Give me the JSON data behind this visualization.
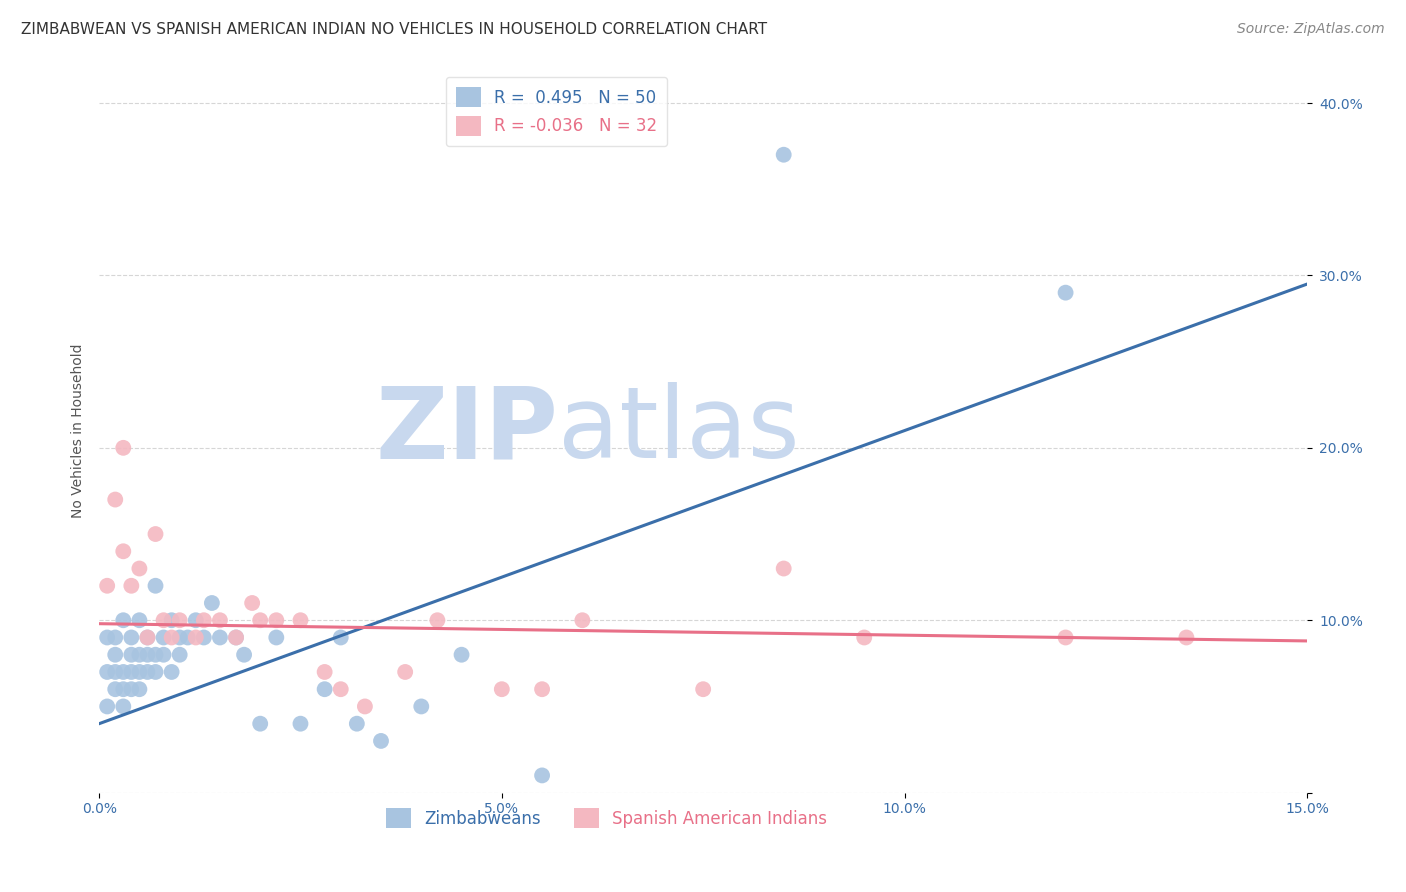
{
  "title": "ZIMBABWEAN VS SPANISH AMERICAN INDIAN NO VEHICLES IN HOUSEHOLD CORRELATION CHART",
  "source": "Source: ZipAtlas.com",
  "xlabel_zimbabwean": "Zimbabweans",
  "xlabel_spanish": "Spanish American Indians",
  "ylabel": "No Vehicles in Household",
  "R_zimbabwean": 0.495,
  "N_zimbabwean": 50,
  "R_spanish": -0.036,
  "N_spanish": 32,
  "xlim": [
    0.0,
    0.15
  ],
  "ylim": [
    0.0,
    0.42
  ],
  "xticks": [
    0.0,
    0.05,
    0.1,
    0.15
  ],
  "yticks": [
    0.0,
    0.1,
    0.2,
    0.3,
    0.4
  ],
  "xtick_labels": [
    "0.0%",
    "5.0%",
    "10.0%",
    "15.0%"
  ],
  "ytick_labels": [
    "",
    "10.0%",
    "20.0%",
    "30.0%",
    "40.0%"
  ],
  "color_zimbabwean": "#a8c4e0",
  "color_spanish": "#f4b8c1",
  "line_color_zimbabwean": "#3b6faa",
  "line_color_spanish": "#e87088",
  "background_color": "#ffffff",
  "watermark_zip": "ZIP",
  "watermark_atlas": "atlas",
  "watermark_color_zip": "#c8d8ee",
  "watermark_color_atlas": "#c8d8ee",
  "zimbabwean_x": [
    0.001,
    0.001,
    0.001,
    0.002,
    0.002,
    0.002,
    0.002,
    0.003,
    0.003,
    0.003,
    0.003,
    0.004,
    0.004,
    0.004,
    0.004,
    0.005,
    0.005,
    0.005,
    0.005,
    0.006,
    0.006,
    0.006,
    0.007,
    0.007,
    0.007,
    0.008,
    0.008,
    0.009,
    0.009,
    0.01,
    0.01,
    0.011,
    0.012,
    0.013,
    0.014,
    0.015,
    0.017,
    0.018,
    0.02,
    0.022,
    0.025,
    0.028,
    0.03,
    0.032,
    0.035,
    0.04,
    0.045,
    0.055,
    0.085,
    0.12
  ],
  "zimbabwean_y": [
    0.05,
    0.07,
    0.09,
    0.06,
    0.07,
    0.08,
    0.09,
    0.05,
    0.06,
    0.07,
    0.1,
    0.06,
    0.07,
    0.08,
    0.09,
    0.06,
    0.07,
    0.08,
    0.1,
    0.07,
    0.08,
    0.09,
    0.07,
    0.08,
    0.12,
    0.08,
    0.09,
    0.07,
    0.1,
    0.08,
    0.09,
    0.09,
    0.1,
    0.09,
    0.11,
    0.09,
    0.09,
    0.08,
    0.04,
    0.09,
    0.04,
    0.06,
    0.09,
    0.04,
    0.03,
    0.05,
    0.08,
    0.01,
    0.37,
    0.29
  ],
  "spanish_x": [
    0.001,
    0.002,
    0.003,
    0.003,
    0.004,
    0.005,
    0.006,
    0.007,
    0.008,
    0.009,
    0.01,
    0.012,
    0.013,
    0.015,
    0.017,
    0.019,
    0.02,
    0.022,
    0.025,
    0.028,
    0.03,
    0.033,
    0.038,
    0.042,
    0.05,
    0.055,
    0.06,
    0.075,
    0.085,
    0.095,
    0.12,
    0.135
  ],
  "spanish_y": [
    0.12,
    0.17,
    0.14,
    0.2,
    0.12,
    0.13,
    0.09,
    0.15,
    0.1,
    0.09,
    0.1,
    0.09,
    0.1,
    0.1,
    0.09,
    0.11,
    0.1,
    0.1,
    0.1,
    0.07,
    0.06,
    0.05,
    0.07,
    0.1,
    0.06,
    0.06,
    0.1,
    0.06,
    0.13,
    0.09,
    0.09,
    0.09
  ],
  "blue_line_x0": 0.0,
  "blue_line_y0": 0.04,
  "blue_line_x1": 0.15,
  "blue_line_y1": 0.295,
  "pink_line_x0": 0.0,
  "pink_line_y0": 0.098,
  "pink_line_x1": 0.15,
  "pink_line_y1": 0.088,
  "marker_size": 130,
  "title_fontsize": 11,
  "axis_label_fontsize": 10,
  "tick_fontsize": 10,
  "legend_fontsize": 12,
  "source_fontsize": 10
}
